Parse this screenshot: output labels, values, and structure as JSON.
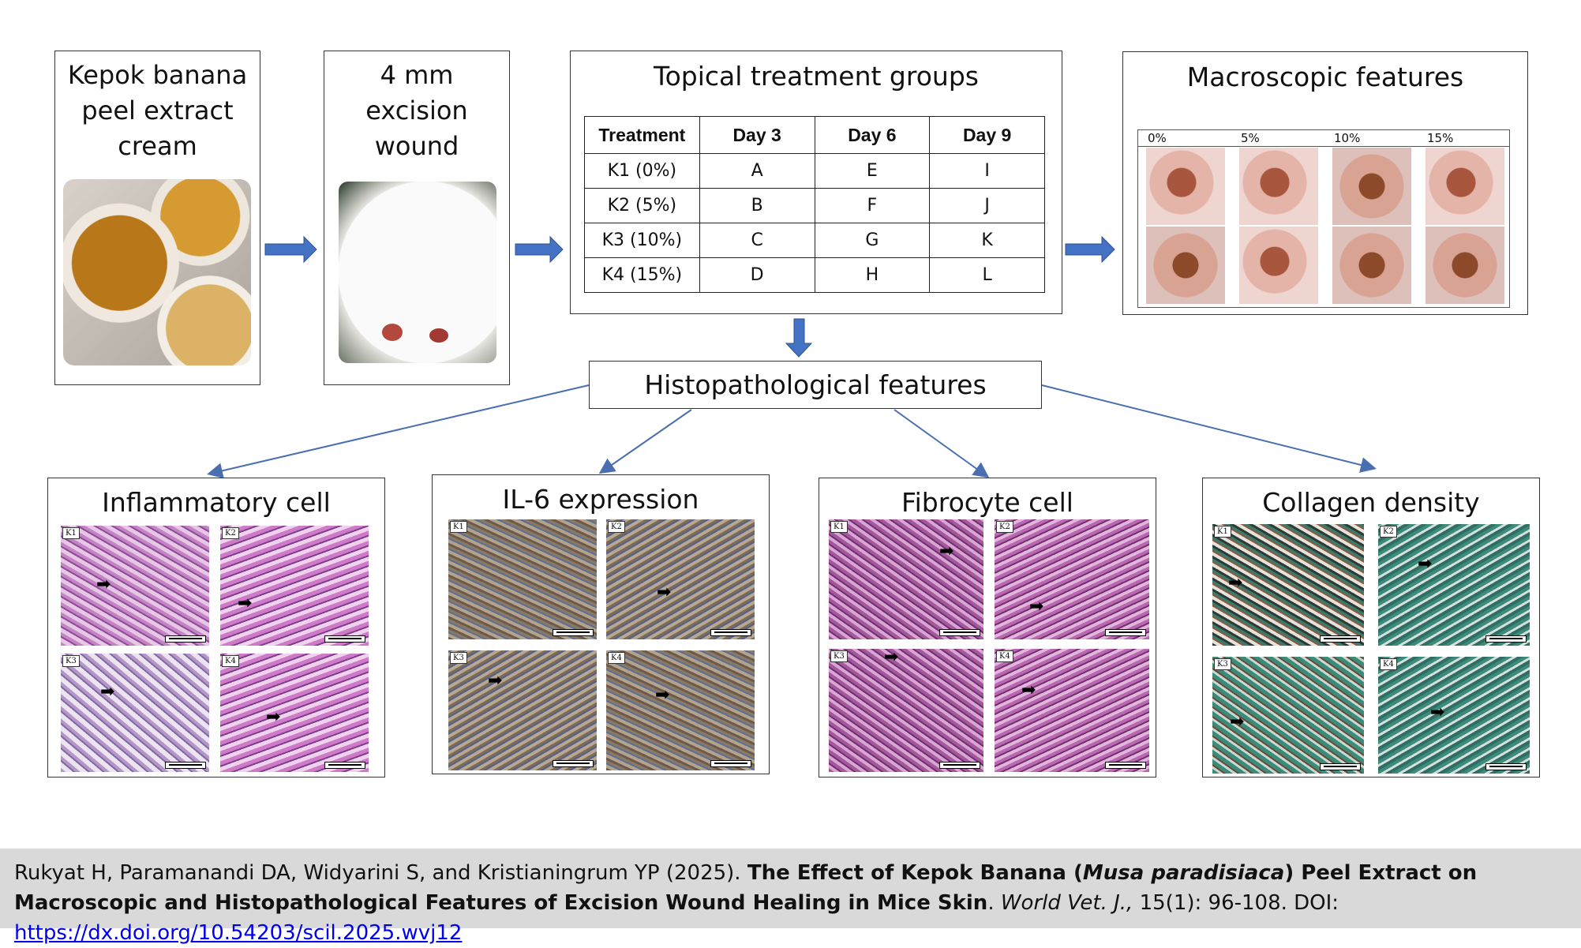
{
  "boxes": {
    "cream": {
      "title_lines": [
        "Kepok banana",
        "peel extract",
        "cream"
      ],
      "icon": "cream-jars-photo"
    },
    "wound": {
      "title_lines": [
        "4 mm",
        "excision",
        "wound"
      ],
      "icon": "mouse-wound-photo"
    },
    "treatment": {
      "title": "Topical treatment groups",
      "headers": [
        "Treatment",
        "Day 3",
        "Day 6",
        "Day 9"
      ],
      "rows": [
        [
          "K1 (0%)",
          "A",
          "E",
          "I"
        ],
        [
          "K2 (5%)",
          "B",
          "F",
          "J"
        ],
        [
          "K3 (10%)",
          "C",
          "G",
          "K"
        ],
        [
          "K4 (15%)",
          "D",
          "H",
          "L"
        ]
      ]
    },
    "macro": {
      "title": "Macroscopic features",
      "columns": [
        "0%",
        "5%",
        "10%",
        "15%"
      ]
    },
    "histo": {
      "title": "Histopathological features"
    }
  },
  "panels": [
    {
      "title": "Inflammatory cell",
      "labels": [
        "K1",
        "K2",
        "K3",
        "K4"
      ]
    },
    {
      "title": "IL-6 expression",
      "labels": [
        "K1",
        "K2",
        "K3",
        "K4"
      ]
    },
    {
      "title": "Fibrocyte cell",
      "labels": [
        "K1",
        "K2",
        "K3",
        "K4"
      ]
    },
    {
      "title": "Collagen density",
      "labels": [
        "K1",
        "K2",
        "K3",
        "K4"
      ]
    }
  ],
  "citation": {
    "authors": "Rukyat H, Paramanandi DA, Widyarini S, and Kristianingrum YP (2025). ",
    "title_a": "The Effect of Kepok Banana (",
    "title_italic": "Musa paradisiaca",
    "title_b": ") Peel Extract on Macroscopic and Histopathological Features of Excision Wound Healing in Mice Skin",
    "after_title": ". ",
    "journal": "World Vet. J.,",
    "volume": " 15(1): 96-108. DOI: ",
    "doi": "https://dx.doi.org/10.54203/scil.2025.wvj12"
  },
  "colors": {
    "arrow": "#4472c4",
    "line": "#4a6fb0",
    "citation_bg": "#d9d9d9",
    "link": "#0000ee"
  }
}
